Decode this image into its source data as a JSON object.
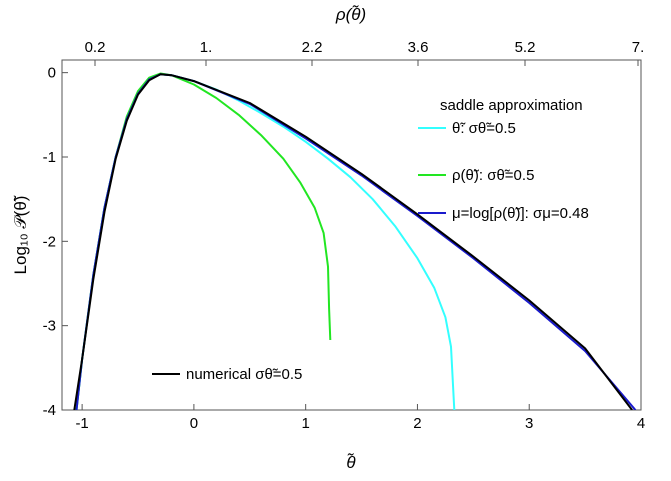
{
  "chart_data": {
    "type": "line",
    "title": "",
    "xlabel": "θ̃",
    "x2label": "ρ(θ̃)",
    "ylabel": "Log₁₀ 𝒫(θ̃)",
    "xlim": [
      -1.18,
      4.0
    ],
    "ylim": [
      -4.0,
      0.15
    ],
    "x_ticks": [
      "-1",
      "0",
      "1",
      "2",
      "3",
      "4"
    ],
    "x2_ticks": [
      {
        "label": "0.2",
        "value": 0.2
      },
      {
        "label": "1.",
        "value": 1.0
      },
      {
        "label": "2.2",
        "value": 2.2
      },
      {
        "label": "3.6",
        "value": 3.6
      },
      {
        "label": "5.2",
        "value": 5.2
      },
      {
        "label": "7.",
        "value": 7.0
      }
    ],
    "y_ticks": [
      "0",
      "-1",
      "-2",
      "-3",
      "-4"
    ],
    "legend_title": "saddle approximation",
    "legend_placement": "right",
    "series": [
      {
        "name": "θ̃: σθ̃=0.5",
        "color": "#33ffff",
        "points": [
          [
            -1.05,
            -4.0
          ],
          [
            -1.0,
            -3.4
          ],
          [
            -0.9,
            -2.4
          ],
          [
            -0.8,
            -1.6
          ],
          [
            -0.7,
            -1.0
          ],
          [
            -0.6,
            -0.55
          ],
          [
            -0.5,
            -0.25
          ],
          [
            -0.4,
            -0.08
          ],
          [
            -0.3,
            -0.02
          ],
          [
            -0.2,
            -0.03
          ],
          [
            0.0,
            -0.1
          ],
          [
            0.2,
            -0.2
          ],
          [
            0.4,
            -0.33
          ],
          [
            0.6,
            -0.48
          ],
          [
            0.8,
            -0.64
          ],
          [
            1.0,
            -0.82
          ],
          [
            1.2,
            -1.02
          ],
          [
            1.4,
            -1.24
          ],
          [
            1.6,
            -1.5
          ],
          [
            1.8,
            -1.82
          ],
          [
            2.0,
            -2.2
          ],
          [
            2.15,
            -2.55
          ],
          [
            2.25,
            -2.9
          ],
          [
            2.3,
            -3.25
          ],
          [
            2.33,
            -4.0
          ]
        ]
      },
      {
        "name": "ρ(θ̃): σθ̃=0.5",
        "color": "#22e622",
        "points": [
          [
            -1.05,
            -4.0
          ],
          [
            -1.0,
            -3.4
          ],
          [
            -0.9,
            -2.4
          ],
          [
            -0.8,
            -1.6
          ],
          [
            -0.7,
            -1.0
          ],
          [
            -0.6,
            -0.52
          ],
          [
            -0.5,
            -0.22
          ],
          [
            -0.4,
            -0.06
          ],
          [
            -0.3,
            -0.01
          ],
          [
            -0.2,
            -0.03
          ],
          [
            0.0,
            -0.14
          ],
          [
            0.2,
            -0.3
          ],
          [
            0.4,
            -0.5
          ],
          [
            0.6,
            -0.74
          ],
          [
            0.8,
            -1.02
          ],
          [
            0.95,
            -1.3
          ],
          [
            1.08,
            -1.6
          ],
          [
            1.16,
            -1.9
          ],
          [
            1.2,
            -2.3
          ],
          [
            1.21,
            -2.8
          ],
          [
            1.22,
            -3.17
          ]
        ]
      },
      {
        "name": "μ=log[ρ(θ̃)]: σμ=0.48",
        "color": "#1a1acc",
        "points": [
          [
            -1.05,
            -4.0
          ],
          [
            -1.0,
            -3.4
          ],
          [
            -0.9,
            -2.4
          ],
          [
            -0.8,
            -1.6
          ],
          [
            -0.7,
            -1.0
          ],
          [
            -0.6,
            -0.55
          ],
          [
            -0.5,
            -0.25
          ],
          [
            -0.4,
            -0.08
          ],
          [
            -0.3,
            -0.02
          ],
          [
            -0.2,
            -0.03
          ],
          [
            0.0,
            -0.1
          ],
          [
            0.5,
            -0.37
          ],
          [
            1.0,
            -0.78
          ],
          [
            1.5,
            -1.22
          ],
          [
            2.0,
            -1.7
          ],
          [
            2.5,
            -2.2
          ],
          [
            3.0,
            -2.73
          ],
          [
            3.5,
            -3.3
          ],
          [
            3.95,
            -4.0
          ]
        ]
      },
      {
        "name": "numerical σθ̃=0.5",
        "color": "#000000",
        "points": [
          [
            -1.07,
            -4.0
          ],
          [
            -1.0,
            -3.4
          ],
          [
            -0.9,
            -2.45
          ],
          [
            -0.8,
            -1.65
          ],
          [
            -0.7,
            -1.02
          ],
          [
            -0.6,
            -0.57
          ],
          [
            -0.5,
            -0.26
          ],
          [
            -0.4,
            -0.09
          ],
          [
            -0.3,
            -0.02
          ],
          [
            -0.2,
            -0.03
          ],
          [
            0.0,
            -0.1
          ],
          [
            0.5,
            -0.36
          ],
          [
            1.0,
            -0.76
          ],
          [
            1.5,
            -1.2
          ],
          [
            2.0,
            -1.68
          ],
          [
            2.5,
            -2.18
          ],
          [
            3.0,
            -2.7
          ],
          [
            3.5,
            -3.27
          ],
          [
            3.92,
            -4.0
          ]
        ]
      }
    ]
  }
}
